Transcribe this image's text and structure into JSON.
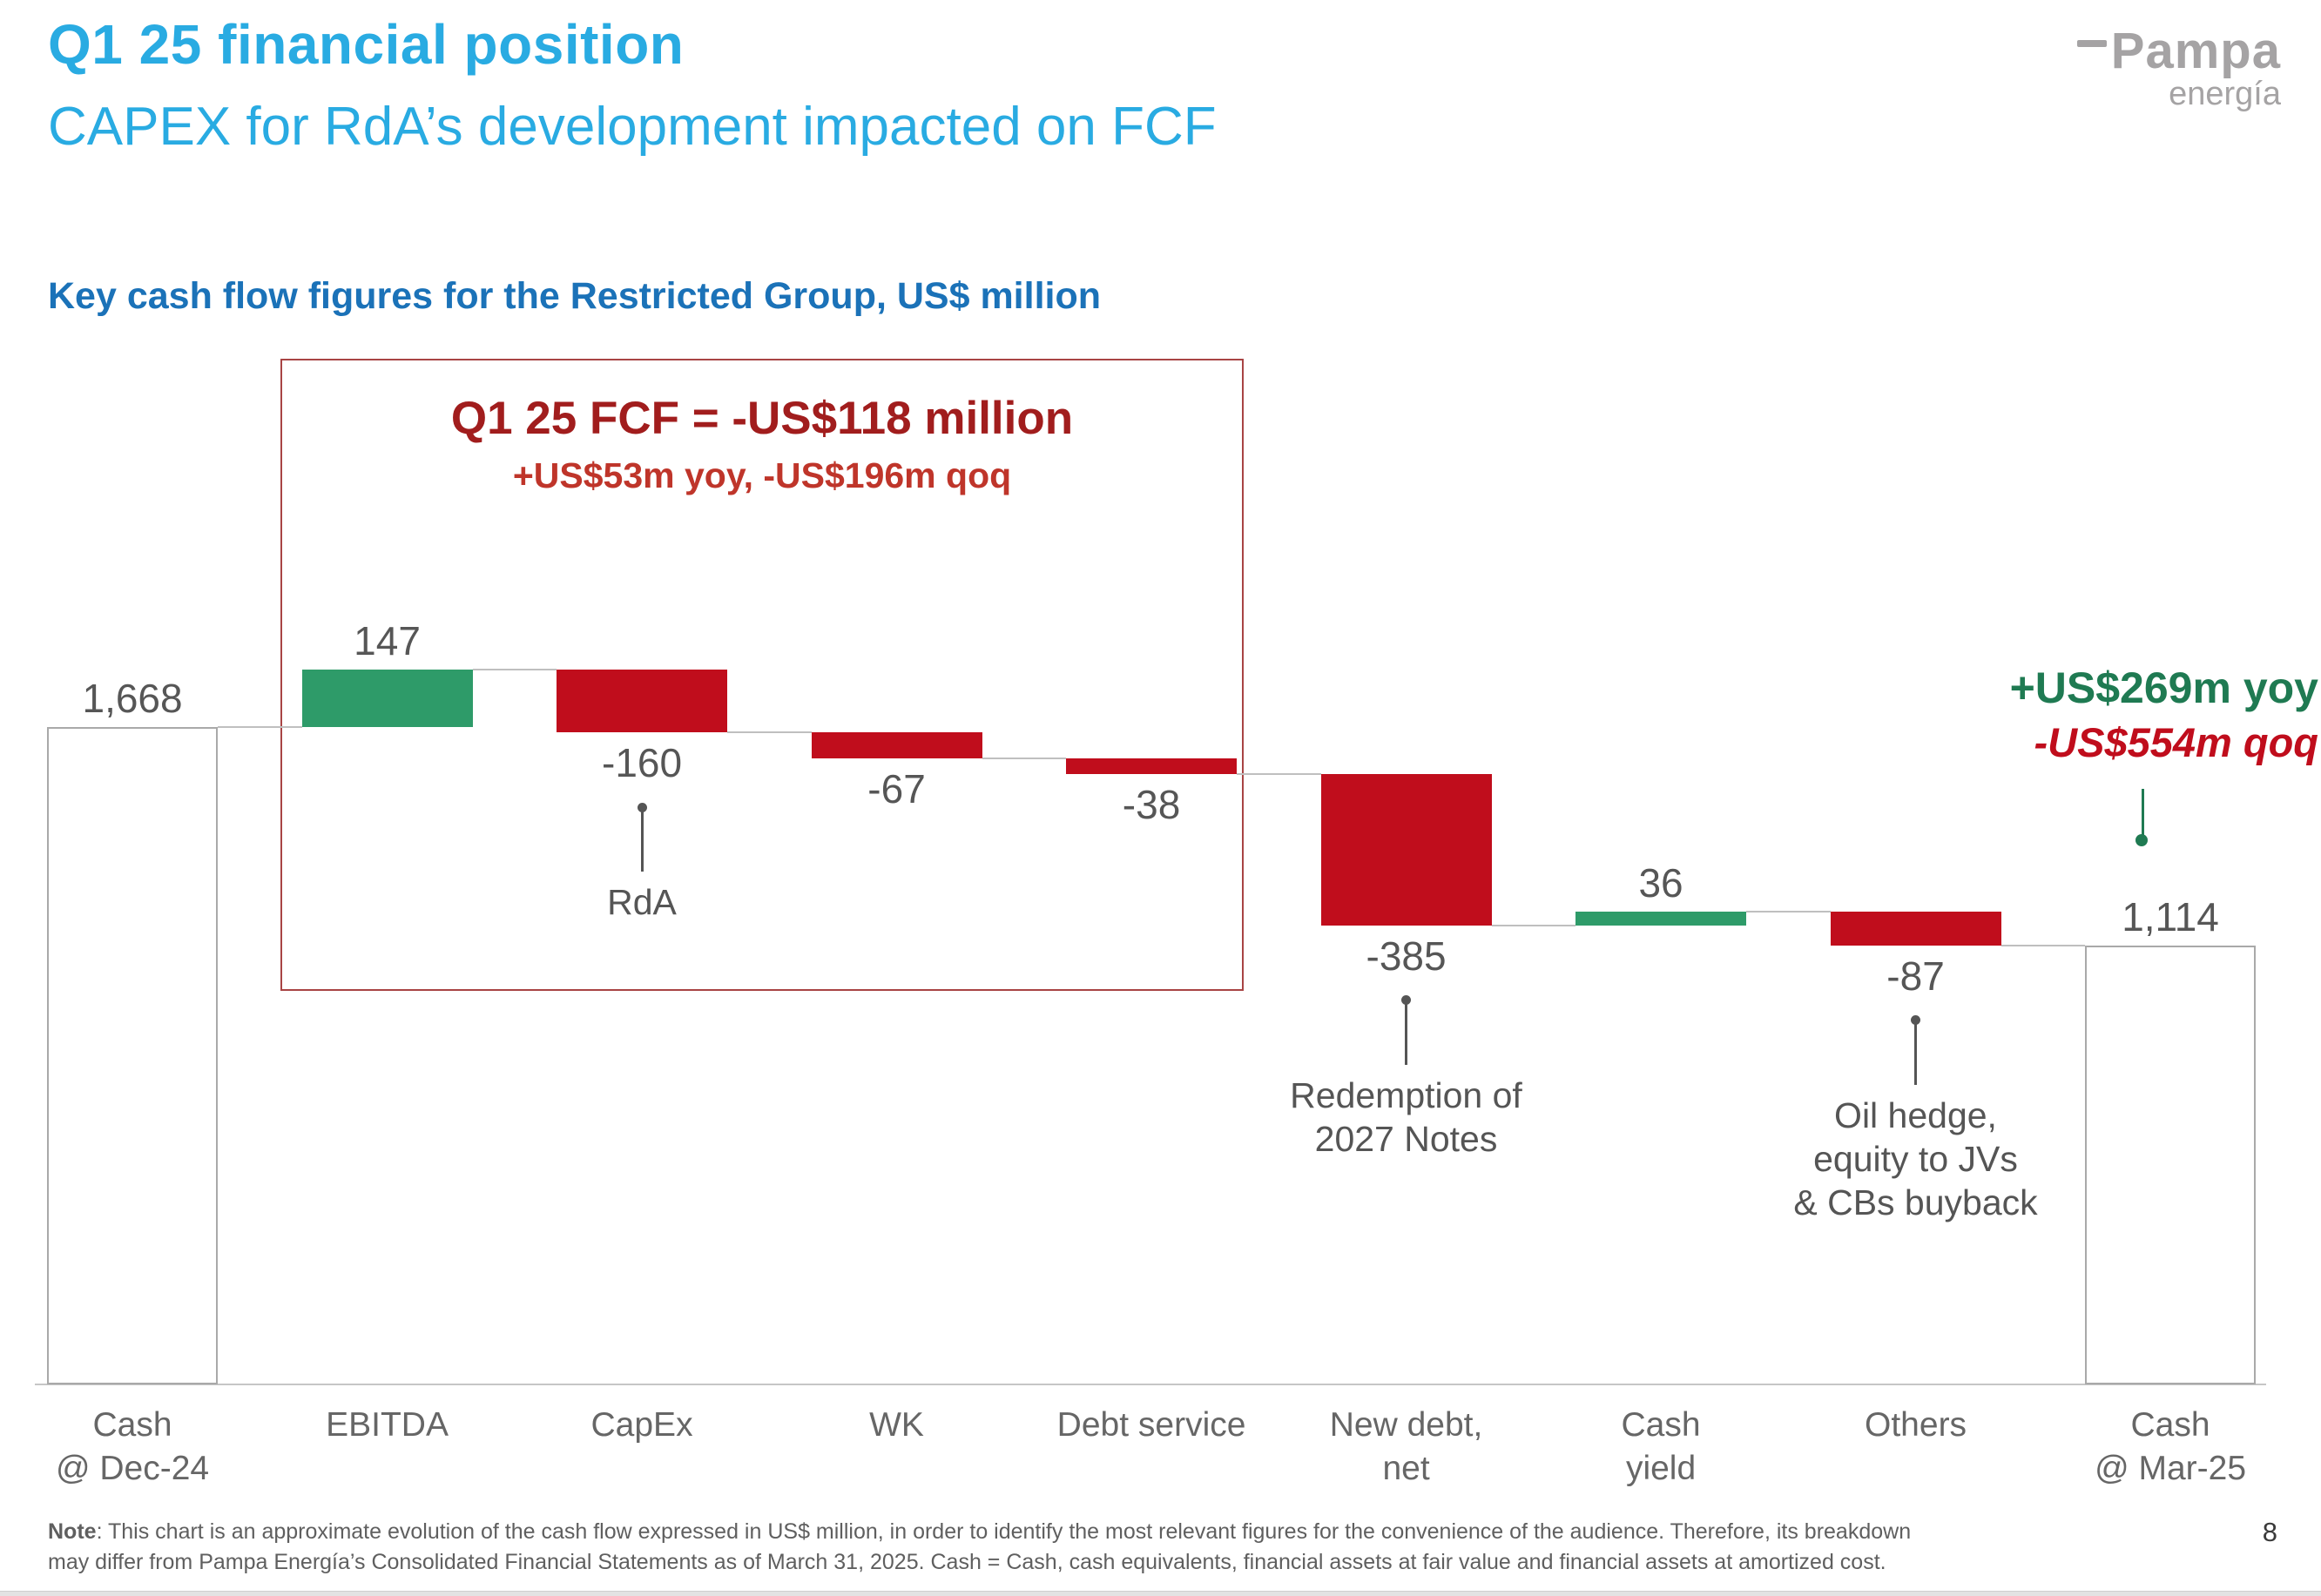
{
  "page": {
    "title": "Q1 25 financial position",
    "subtitle": "CAPEX for RdA’s development impacted on FCF",
    "page_number": "8"
  },
  "logo": {
    "name": "Pampa",
    "sub": "energía"
  },
  "chart_heading": "Key cash flow figures for the Restricted Group, US$ million",
  "fcf_box": {
    "title": "Q1 25 FCF = -US$118 million",
    "subtitle": "+US$53m yoy, -US$196m qoq"
  },
  "right_annotation": {
    "yoy": "+US$269m yoy",
    "qoq": "-US$554m qoq"
  },
  "note": {
    "label": "Note",
    "text": ": This chart is an approximate evolution of the cash flow expressed in US$ million, in order to identify the most relevant figures for the convenience of the audience. Therefore, its breakdown may differ from Pampa Energía’s Consolidated Financial Statements as of March 31, 2025. Cash = Cash, cash equivalents, financial assets at fair value and financial assets at amortized cost."
  },
  "chart_data": {
    "type": "waterfall",
    "title": "Key cash flow figures for the Restricted Group",
    "unit": "US$ million",
    "legend_position": "none",
    "grid": false,
    "fcf_total": -118,
    "fcf_yoy_change": 53,
    "fcf_qoq_change": -196,
    "cash_yoy_change": 269,
    "cash_qoq_change": -554,
    "bars": [
      {
        "label": "Cash @ Dec-24",
        "cat_lines": [
          "Cash",
          "@ Dec-24"
        ],
        "kind": "total",
        "value": 1668,
        "display": "1,668"
      },
      {
        "label": "EBITDA",
        "cat_lines": [
          "EBITDA"
        ],
        "kind": "delta",
        "value": 147,
        "display": "147"
      },
      {
        "label": "CapEx",
        "cat_lines": [
          "CapEx"
        ],
        "kind": "delta",
        "value": -160,
        "display": "-160",
        "callout_lines": [
          "RdA"
        ]
      },
      {
        "label": "WK",
        "cat_lines": [
          "WK"
        ],
        "kind": "delta",
        "value": -67,
        "display": "-67"
      },
      {
        "label": "Debt service",
        "cat_lines": [
          "Debt service"
        ],
        "kind": "delta",
        "value": -38,
        "display": "-38"
      },
      {
        "label": "New debt, net",
        "cat_lines": [
          "New debt,",
          "net"
        ],
        "kind": "delta",
        "value": -385,
        "display": "-385",
        "callout_lines": [
          "Redemption of",
          "2027 Notes"
        ]
      },
      {
        "label": "Cash yield",
        "cat_lines": [
          "Cash",
          "yield"
        ],
        "kind": "delta",
        "value": 36,
        "display": "36"
      },
      {
        "label": "Others",
        "cat_lines": [
          "Others"
        ],
        "kind": "delta",
        "value": -87,
        "display": "-87",
        "callout_lines": [
          "Oil hedge,",
          "equity to JVs",
          "& CBs buyback"
        ]
      },
      {
        "label": "Cash @ Mar-25",
        "cat_lines": [
          "Cash",
          "@ Mar-25"
        ],
        "kind": "total",
        "value": 1114,
        "display": "1,114"
      }
    ],
    "colors": {
      "positive": "#2e9b69",
      "negative": "#c00d1c",
      "total_fill": "#ffffff",
      "total_border": "#a9a9a9",
      "connector": "#bfbfbf",
      "accent_green": "#1f7a52",
      "accent_red": "#c00d1c",
      "title_blue": "#29abe2",
      "heading_blue": "#1b72b8"
    }
  }
}
